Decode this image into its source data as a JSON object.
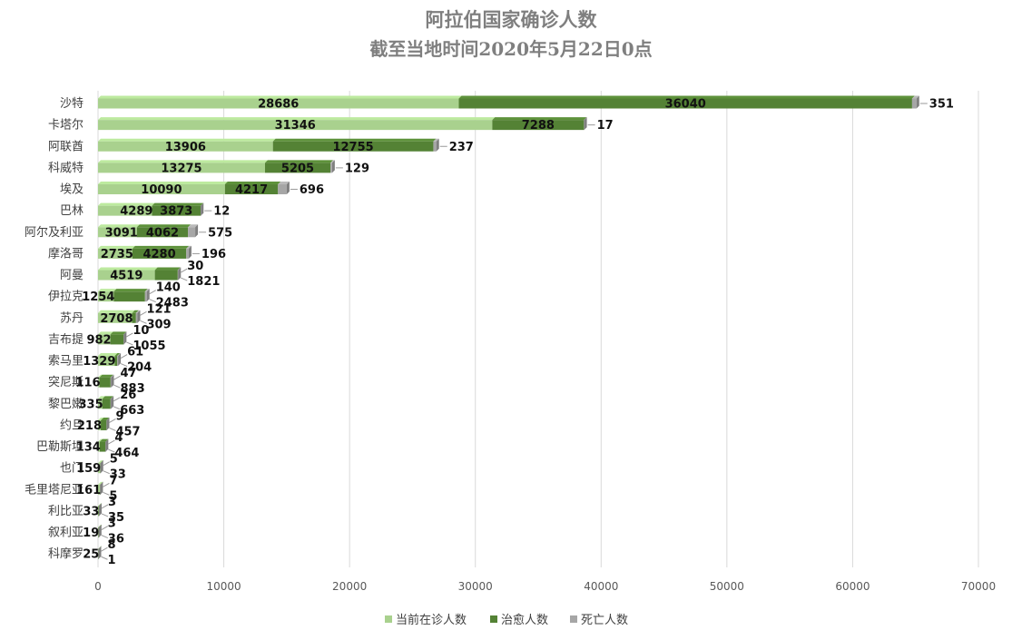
{
  "chart_data": {
    "type": "bar",
    "orientation": "horizontal",
    "stacked": true,
    "title": "阿拉伯国家确诊人数",
    "subtitle": "截至当地时间2020年5月22日0点",
    "xlim": [
      0,
      70000
    ],
    "x_ticks": [
      "0",
      "10000",
      "20000",
      "30000",
      "40000",
      "50000",
      "60000",
      "70000"
    ],
    "grid": true,
    "legend_position": "bottom",
    "categories": [
      "沙特",
      "卡塔尔",
      "阿联酋",
      "科威特",
      "埃及",
      "巴林",
      "阿尔及利亚",
      "摩洛哥",
      "阿曼",
      "伊拉克",
      "苏丹",
      "吉布提",
      "索马里",
      "突尼斯",
      "黎巴嫩",
      "约旦",
      "巴勒斯坦",
      "也门",
      "毛里塔尼亚",
      "利比亚",
      "叙利亚",
      "科摩罗"
    ],
    "series": [
      {
        "name": "当前在诊人数",
        "color": "#a9d18e",
        "values": [
          28686,
          31346,
          13906,
          13275,
          10090,
          4289,
          3091,
          2735,
          4519,
          1254,
          2708,
          982,
          1329,
          116,
          335,
          218,
          134,
          159,
          161,
          33,
          19,
          25
        ]
      },
      {
        "name": "治愈人数",
        "color": "#548235",
        "values": [
          36040,
          7288,
          12755,
          5205,
          4217,
          3873,
          4062,
          4280,
          1821,
          2483,
          309,
          1055,
          204,
          883,
          663,
          457,
          464,
          33,
          5,
          35,
          36,
          1
        ]
      },
      {
        "name": "死亡人数",
        "color": "#a6a6a6",
        "values": [
          351,
          17,
          237,
          129,
          696,
          12,
          575,
          196,
          30,
          140,
          121,
          10,
          61,
          47,
          26,
          9,
          4,
          5,
          7,
          3,
          3,
          8
        ]
      }
    ]
  }
}
